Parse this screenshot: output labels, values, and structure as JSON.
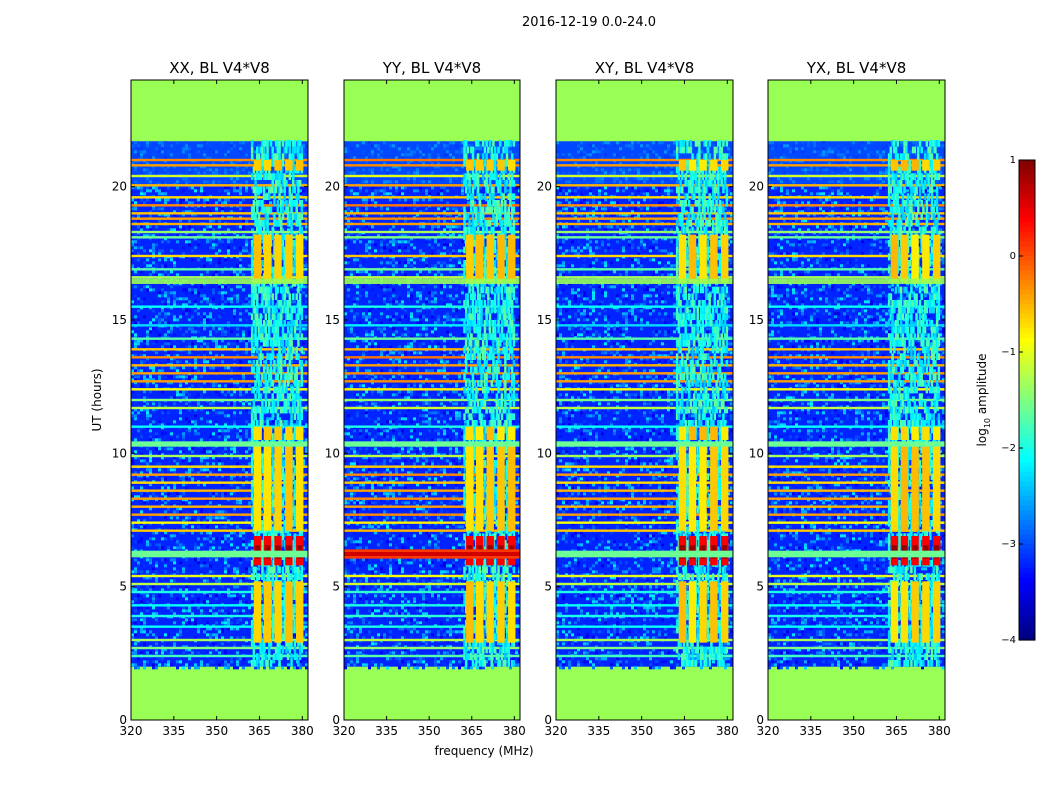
{
  "figure_title": "2016-12-19 0.0-24.0",
  "chart_data": [
    {
      "type": "heatmap",
      "title": "XX, BL V4*V8",
      "pol": "XX",
      "xlabel": "frequency (MHz)",
      "ylabel": "UT (hours)",
      "xlim": [
        320,
        382
      ],
      "ylim": [
        0,
        24
      ],
      "xticks": [
        320,
        335,
        350,
        365,
        380
      ],
      "yticks": [
        0,
        5,
        10,
        15,
        20
      ],
      "observed_range_hours": [
        2.0,
        21.7
      ],
      "rfi_band_mhz": [
        362,
        380
      ],
      "strong_burst_hours": [
        5.8,
        6.9
      ]
    },
    {
      "type": "heatmap",
      "title": "YY, BL V4*V8",
      "pol": "YY",
      "xlabel": "frequency (MHz)",
      "ylabel": "UT (hours)",
      "xlim": [
        320,
        382
      ],
      "ylim": [
        0,
        24
      ],
      "xticks": [
        320,
        335,
        350,
        365,
        380
      ],
      "yticks": [
        0,
        5,
        10,
        15,
        20
      ],
      "observed_range_hours": [
        2.0,
        21.7
      ],
      "rfi_band_mhz": [
        362,
        380
      ],
      "strong_burst_hours": [
        5.8,
        6.9
      ]
    },
    {
      "type": "heatmap",
      "title": "XY, BL V4*V8",
      "pol": "XY",
      "xlabel": "frequency (MHz)",
      "ylabel": "UT (hours)",
      "xlim": [
        320,
        382
      ],
      "ylim": [
        0,
        24
      ],
      "xticks": [
        320,
        335,
        350,
        365,
        380
      ],
      "yticks": [
        0,
        5,
        10,
        15,
        20
      ],
      "observed_range_hours": [
        2.0,
        21.7
      ],
      "rfi_band_mhz": [
        362,
        380
      ],
      "strong_burst_hours": [
        5.8,
        6.9
      ]
    },
    {
      "type": "heatmap",
      "title": "YX, BL V4*V8",
      "pol": "YX",
      "xlabel": "frequency (MHz)",
      "ylabel": "UT (hours)",
      "xlim": [
        320,
        382
      ],
      "ylim": [
        0,
        24
      ],
      "xticks": [
        320,
        335,
        350,
        365,
        380
      ],
      "yticks": [
        0,
        5,
        10,
        15,
        20
      ],
      "observed_range_hours": [
        2.0,
        21.7
      ],
      "rfi_band_mhz": [
        362,
        380
      ],
      "strong_burst_hours": [
        5.8,
        6.9
      ]
    }
  ],
  "colorbar": {
    "label": "log10 amplitude",
    "label_main": "log",
    "label_sub": "10",
    "label_rest": " amplitude",
    "min": -4,
    "max": 1,
    "ticks": [
      1,
      0,
      -1,
      -2,
      -3,
      -4
    ],
    "tick_labels": [
      "1",
      "0",
      "−1",
      "−2",
      "−3",
      "−4"
    ]
  },
  "shared_xlabel": "frequency (MHz)",
  "colors": {
    "masked": "#99ff55"
  }
}
